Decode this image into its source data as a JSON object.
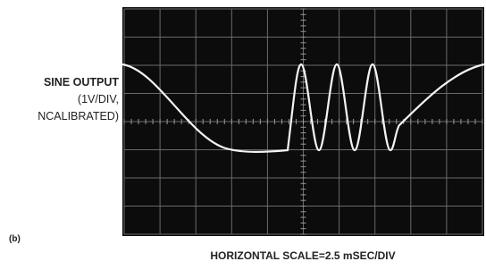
{
  "labels": {
    "channel": "SINE OUTPUT",
    "scale_line1": "(1V/DIV,",
    "scale_line2": "NCALIBRATED)",
    "panel": "(b)",
    "horizontal": "HORIZONTAL SCALE=2.5 mSEC/DIV"
  }
}
